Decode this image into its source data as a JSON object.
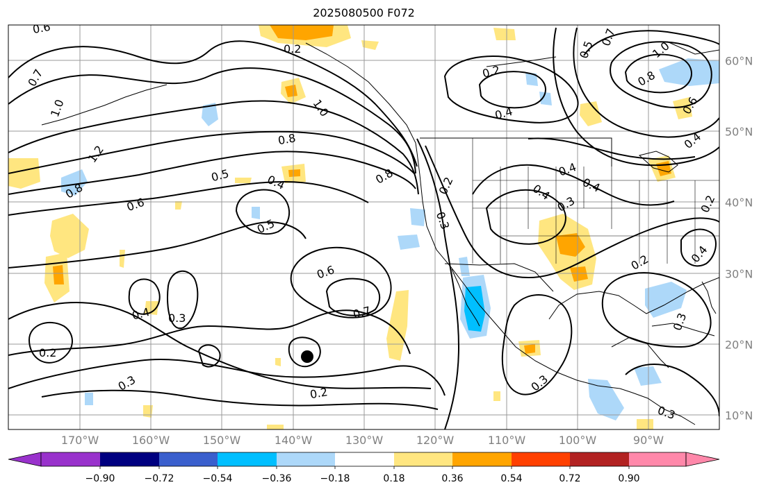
{
  "title": "2025080500 F072",
  "longitude_labels": [
    "170°W",
    "160°W",
    "150°W",
    "140°W",
    "130°W",
    "120°W",
    "110°W",
    "100°W",
    "90°W"
  ],
  "latitude_labels": [
    "60°N",
    "50°N",
    "40°N",
    "30°N",
    "20°N",
    "10°N"
  ],
  "colorbar": {
    "ticks": [
      "−0.90",
      "−0.72",
      "−0.54",
      "−0.36",
      "−0.18",
      "0.18",
      "0.36",
      "0.54",
      "0.72",
      "0.90"
    ],
    "colors": [
      "#9932cc",
      "#000080",
      "#3a5fcd",
      "#00bfff",
      "#add8f9",
      "#ffffff",
      "#ffe680",
      "#ffa500",
      "#ff4000",
      "#b22222",
      "#ff88aa"
    ]
  },
  "contour_labels": [
    "0.6",
    "0.7",
    "1.0",
    "0.2",
    "0.2",
    "0.4",
    "0.5",
    "0.7",
    "1.0",
    "0.8",
    "0.6",
    "0.4",
    "1.0",
    "1.2",
    "0.8",
    "0.8",
    "0.5",
    "0.4",
    "0.6",
    "0.8",
    "0.5",
    "0.2",
    "0.3",
    "0.4",
    "0.4",
    "0.4",
    "0.3",
    "0.2",
    "0.6",
    "0.7",
    "0.4",
    "0.3",
    "0.2",
    "0.3",
    "0.2",
    "0.2",
    "0.4",
    "0.3",
    "0.3",
    "0.3"
  ],
  "shading_colors": {
    "light_yellow": "#ffe680",
    "orange": "#ffa500",
    "light_blue": "#add8f9",
    "blue": "#00bfff"
  }
}
